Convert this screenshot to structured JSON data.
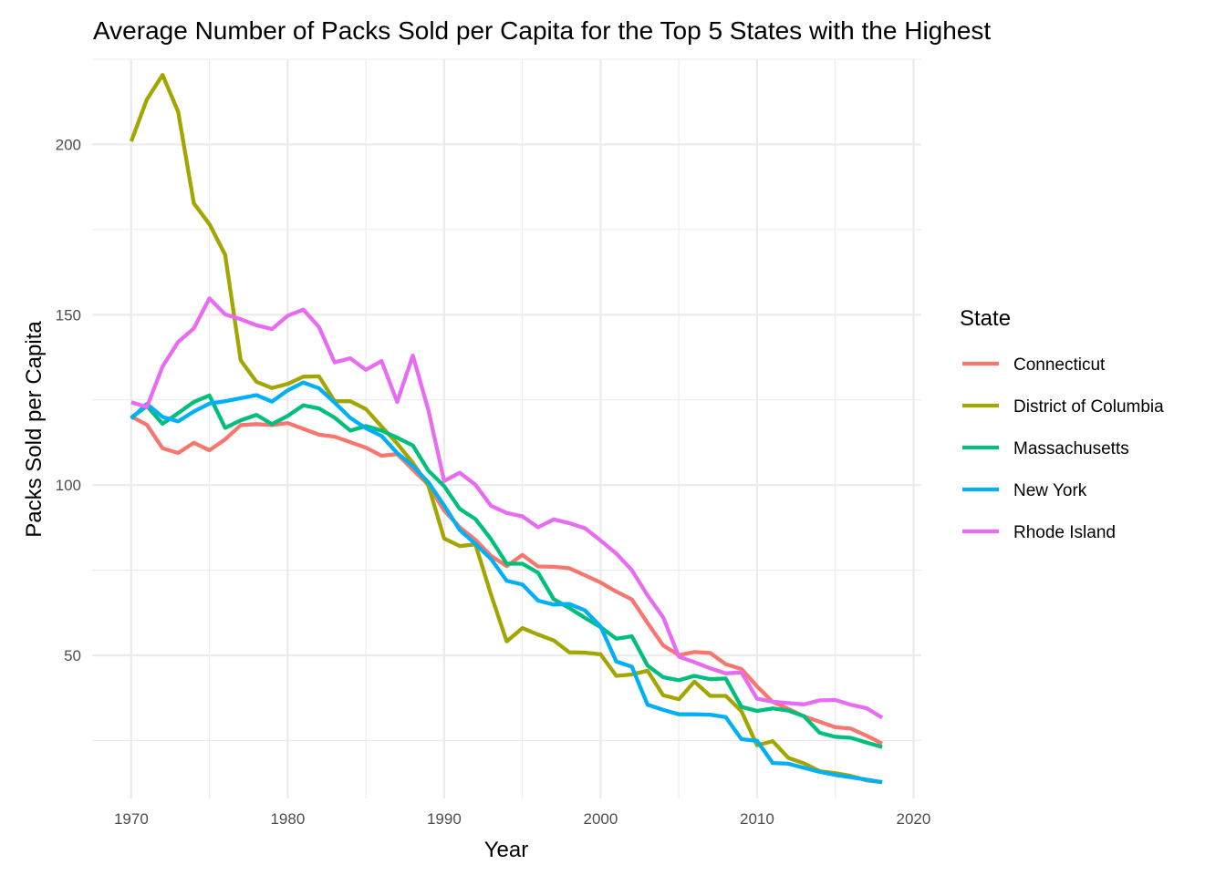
{
  "chart_data": {
    "type": "line",
    "title": "Average Number of Packs Sold per Capita for the Top 5 States with the Highest",
    "xlabel": "Year",
    "ylabel": "Packs Sold per Capita",
    "xlim": [
      1967.5,
      2020.5
    ],
    "ylim": [
      8,
      225
    ],
    "x_ticks": [
      1970,
      1980,
      1990,
      2000,
      2010,
      2020
    ],
    "y_ticks": [
      50,
      100,
      150,
      200
    ],
    "grid": true,
    "legend": {
      "title": "State",
      "position": "right"
    },
    "x": [
      1970,
      1971,
      1972,
      1973,
      1974,
      1975,
      1976,
      1977,
      1978,
      1979,
      1980,
      1981,
      1982,
      1983,
      1984,
      1985,
      1986,
      1987,
      1988,
      1989,
      1990,
      1991,
      1992,
      1993,
      1994,
      1995,
      1996,
      1997,
      1998,
      1999,
      2000,
      2001,
      2002,
      2003,
      2004,
      2005,
      2006,
      2007,
      2008,
      2009,
      2010,
      2011,
      2012,
      2013,
      2014,
      2015,
      2016,
      2017,
      2018
    ],
    "series": [
      {
        "name": "Connecticut",
        "color": "#F8766D",
        "values": [
          120.1,
          117.7,
          110.8,
          109.4,
          112.4,
          110.2,
          113.4,
          117.6,
          117.9,
          117.6,
          118.2,
          116.5,
          114.8,
          114.2,
          112.6,
          111.0,
          108.6,
          109.1,
          104.5,
          100.1,
          92.5,
          87.6,
          83.9,
          79.2,
          76.2,
          79.5,
          76.1,
          76.0,
          75.6,
          73.5,
          71.4,
          68.7,
          66.4,
          59.5,
          52.9,
          50.1,
          51.0,
          50.7,
          47.4,
          46.0,
          40.9,
          36.3,
          34.3,
          32.1,
          30.5,
          28.9,
          28.5,
          26.4,
          24.1
        ]
      },
      {
        "name": "District of Columbia",
        "color": "#A3A500",
        "values": [
          200.9,
          213.2,
          220.4,
          209.6,
          182.7,
          176.6,
          167.6,
          136.6,
          130.3,
          128.5,
          129.7,
          131.8,
          131.9,
          124.6,
          124.6,
          122.3,
          117.2,
          112.2,
          106.5,
          99.8,
          84.3,
          82.1,
          82.6,
          67.8,
          54.1,
          58.0,
          56.1,
          54.4,
          50.9,
          50.8,
          50.3,
          44.0,
          44.4,
          45.5,
          38.3,
          37.1,
          42.3,
          38.1,
          38.1,
          33.6,
          23.6,
          24.8,
          19.9,
          18.3,
          16.0,
          15.4,
          14.6,
          13.3,
          12.8
        ]
      },
      {
        "name": "Massachusetts",
        "color": "#00BF7D",
        "values": [
          119.8,
          123.2,
          118.0,
          121.1,
          124.4,
          126.3,
          116.8,
          119.0,
          120.6,
          117.9,
          120.3,
          123.4,
          122.5,
          119.8,
          116.0,
          117.3,
          116.0,
          113.9,
          111.6,
          104.2,
          99.7,
          93.0,
          90.0,
          84.1,
          76.9,
          76.9,
          74.3,
          66.5,
          63.9,
          61.0,
          58.3,
          54.9,
          55.6,
          47.0,
          43.6,
          42.7,
          44.0,
          43.0,
          43.2,
          34.9,
          33.7,
          34.4,
          33.8,
          32.1,
          27.3,
          26.1,
          25.8,
          24.4,
          23.1
        ]
      },
      {
        "name": "New York",
        "color": "#00B0F6",
        "values": [
          119.5,
          123.8,
          120.0,
          118.7,
          121.6,
          123.9,
          124.6,
          125.5,
          126.4,
          124.5,
          127.8,
          130.1,
          128.4,
          124.2,
          119.7,
          116.7,
          114.4,
          109.4,
          105.6,
          100.8,
          94.0,
          86.8,
          82.7,
          78.3,
          71.9,
          70.8,
          66.1,
          64.9,
          65.1,
          63.2,
          58.5,
          48.2,
          46.7,
          35.5,
          34.0,
          32.7,
          32.7,
          32.6,
          31.9,
          25.4,
          24.9,
          18.4,
          18.2,
          17.0,
          15.8,
          14.9,
          14.2,
          13.5,
          12.8
        ]
      },
      {
        "name": "Rhode Island",
        "color": "#E76BF3",
        "values": [
          124.3,
          122.9,
          134.8,
          142.0,
          146.0,
          154.8,
          150.1,
          148.7,
          146.9,
          145.8,
          149.7,
          151.5,
          146.4,
          136.0,
          137.2,
          133.8,
          136.4,
          124.4,
          138.0,
          121.9,
          101.2,
          103.6,
          100.1,
          93.9,
          91.8,
          90.8,
          87.6,
          89.9,
          88.8,
          87.3,
          83.7,
          79.9,
          75.0,
          67.6,
          61.2,
          49.6,
          48.0,
          46.2,
          44.7,
          45.0,
          37.3,
          36.4,
          36.0,
          35.6,
          36.8,
          36.9,
          35.5,
          34.5,
          31.7
        ]
      }
    ]
  }
}
